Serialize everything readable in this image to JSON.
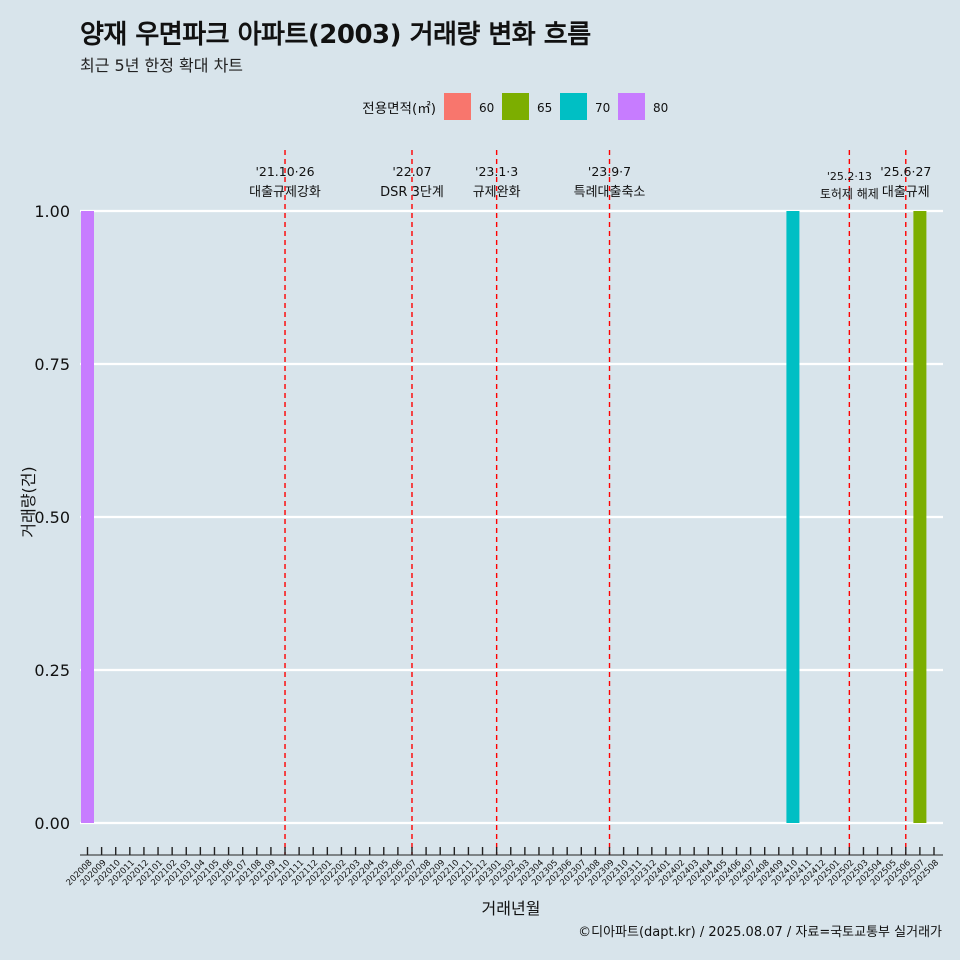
{
  "title": "양재 우면파크 아파트(2003) 거래량 변화 흐름",
  "subtitle": "최근 5년 한정 확대 차트",
  "caption": "©디아파트(dapt.kr) / 2025.08.07 / 자료=국토교통부 실거래가",
  "chart_data": {
    "type": "bar",
    "xlabel": "거래년월",
    "ylabel": "거래량(건)",
    "ylim": [
      0,
      1
    ],
    "yticks": [
      "0.00",
      "0.25",
      "0.50",
      "0.75",
      "1.00"
    ],
    "legend_title": "전용면적(㎡)",
    "legend_position": "top",
    "categories": [
      "202008",
      "202009",
      "202010",
      "202011",
      "202012",
      "202101",
      "202102",
      "202103",
      "202104",
      "202105",
      "202106",
      "202107",
      "202108",
      "202109",
      "202110",
      "202111",
      "202112",
      "202201",
      "202202",
      "202203",
      "202204",
      "202205",
      "202206",
      "202207",
      "202208",
      "202209",
      "202210",
      "202211",
      "202212",
      "202301",
      "202302",
      "202303",
      "202304",
      "202305",
      "202306",
      "202307",
      "202308",
      "202309",
      "202310",
      "202311",
      "202312",
      "202401",
      "202402",
      "202403",
      "202404",
      "202405",
      "202406",
      "202407",
      "202408",
      "202409",
      "202410",
      "202411",
      "202412",
      "202501",
      "202502",
      "202503",
      "202504",
      "202505",
      "202506",
      "202507",
      "202508"
    ],
    "series": [
      {
        "name": "60",
        "color": "#f8766d",
        "points": []
      },
      {
        "name": "65",
        "color": "#7cae00",
        "points": [
          {
            "x": "202507",
            "value": 1
          }
        ]
      },
      {
        "name": "70",
        "color": "#00bfc4",
        "points": [
          {
            "x": "202410",
            "value": 1
          }
        ]
      },
      {
        "name": "80",
        "color": "#c77cff",
        "points": [
          {
            "x": "202008",
            "value": 1
          }
        ]
      }
    ],
    "annotations": [
      {
        "x": "202110",
        "date": "'21.10·26",
        "label": "대출규제강화"
      },
      {
        "x": "202207",
        "date": "'22.07",
        "label": "DSR 3단계"
      },
      {
        "x": "202301",
        "date": "'23.1·3",
        "label": "규제완화"
      },
      {
        "x": "202309",
        "date": "'23.9·7",
        "label": "특례대출축소"
      },
      {
        "x": "202502",
        "date": "'25.2·13",
        "label": "토허제 해제"
      },
      {
        "x": "202506",
        "date": "'25.6·27",
        "label": "대출규제"
      }
    ],
    "grid": true
  }
}
